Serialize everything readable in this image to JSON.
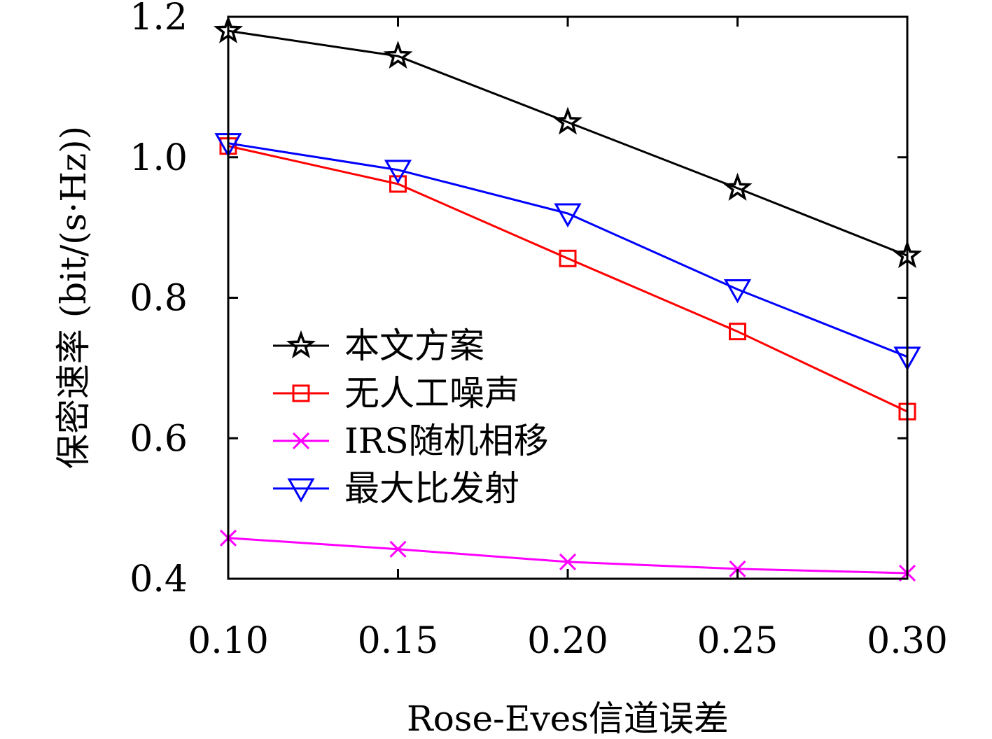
{
  "chart_data": {
    "type": "line",
    "xlabel": "Rose-Eves信道误差",
    "ylabel": "保密速率 (bit/(s·Hz))",
    "x": [
      0.1,
      0.15,
      0.2,
      0.25,
      0.3
    ],
    "x_tick_labels": [
      "0.10",
      "0.15",
      "0.20",
      "0.25",
      "0.30"
    ],
    "xlim": [
      0.1,
      0.3
    ],
    "ylim": [
      0.4,
      1.2
    ],
    "y_ticks": [
      0.4,
      0.6,
      0.8,
      1.0,
      1.2
    ],
    "y_tick_labels": [
      "0.4",
      "0.6",
      "0.8",
      "1.0",
      "1.2"
    ],
    "grid": false,
    "legend_position": "center-left",
    "series": [
      {
        "name": "本文方案",
        "color": "#000000",
        "marker": "star",
        "values": [
          1.18,
          1.144,
          1.05,
          0.956,
          0.86
        ]
      },
      {
        "name": "无人工噪声",
        "color": "#ff0000",
        "marker": "square",
        "values": [
          1.016,
          0.962,
          0.856,
          0.752,
          0.638
        ]
      },
      {
        "name": "IRS随机相移",
        "color": "#ff00ff",
        "marker": "x",
        "values": [
          0.458,
          0.442,
          0.424,
          0.414,
          0.408
        ]
      },
      {
        "name": "最大比发射",
        "color": "#0000ff",
        "marker": "triangle-down",
        "values": [
          1.02,
          0.982,
          0.92,
          0.812,
          0.716
        ]
      }
    ]
  }
}
